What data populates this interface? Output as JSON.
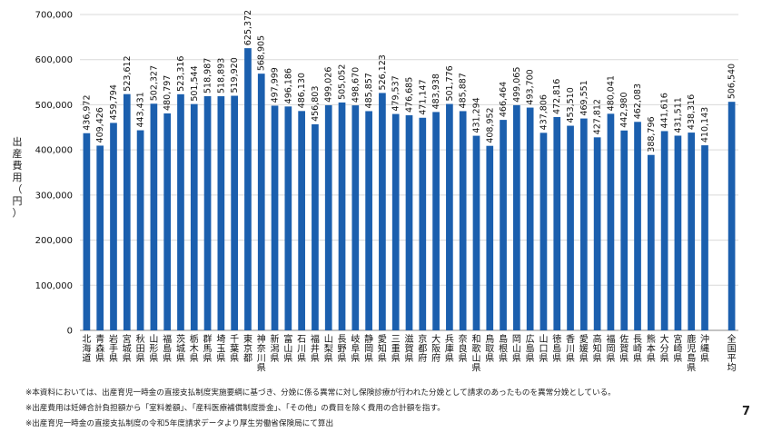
{
  "chart_data": {
    "type": "bar",
    "ylabel": "出産費用（円）",
    "ylim": [
      0,
      700000
    ],
    "yticks": [
      "0",
      "100,000",
      "200,000",
      "300,000",
      "400,000",
      "500,000",
      "600,000",
      "700,000"
    ],
    "grid": true,
    "bar_color": "#1b5fae",
    "categories": [
      "北海道",
      "青森県",
      "岩手県",
      "宮城県",
      "秋田県",
      "山形県",
      "福島県",
      "茨城県",
      "栃木県",
      "群馬県",
      "埼玉県",
      "千葉県",
      "東京都",
      "神奈川県",
      "新潟県",
      "富山県",
      "石川県",
      "福井県",
      "山梨県",
      "長野県",
      "岐阜県",
      "静岡県",
      "愛知県",
      "三重県",
      "滋賀県",
      "京都府",
      "大阪府",
      "兵庫県",
      "奈良県",
      "和歌山県",
      "鳥取県",
      "島根県",
      "岡山県",
      "広島県",
      "山口県",
      "徳島県",
      "香川県",
      "愛媛県",
      "高知県",
      "福岡県",
      "佐賀県",
      "長崎県",
      "熊本県",
      "大分県",
      "宮崎県",
      "鹿児島県",
      "沖縄県",
      "全国平均"
    ],
    "values": [
      436972,
      409426,
      459794,
      523612,
      443431,
      502327,
      480797,
      523316,
      501544,
      518987,
      518893,
      519920,
      625372,
      568905,
      497999,
      496186,
      486130,
      456803,
      499026,
      505052,
      498670,
      485857,
      526123,
      479537,
      476685,
      471147,
      483938,
      501776,
      485887,
      431294,
      408952,
      466464,
      499065,
      493700,
      437806,
      472816,
      453510,
      469551,
      427812,
      480041,
      442980,
      462083,
      388796,
      441616,
      431511,
      438316,
      410143,
      506540
    ],
    "value_labels": [
      "436,972",
      "409,426",
      "459,794",
      "523,612",
      "443,431",
      "502,327",
      "480,797",
      "523,316",
      "501,544",
      "518,987",
      "518,893",
      "519,920",
      "625,372",
      "568,905",
      "497,999",
      "496,186",
      "486,130",
      "456,803",
      "499,026",
      "505,052",
      "498,670",
      "485,857",
      "526,123",
      "479,537",
      "476,685",
      "471,147",
      "483,938",
      "501,776",
      "485,887",
      "431,294",
      "408,952",
      "466,464",
      "499,065",
      "493,700",
      "437,806",
      "472,816",
      "453,510",
      "469,551",
      "427,812",
      "480,041",
      "442,980",
      "462,083",
      "388,796",
      "441,616",
      "431,511",
      "438,316",
      "410,143",
      "506,540"
    ]
  },
  "notes": [
    "※本資料においては、出産育児一時金の直接支払制度実施要綱に基づき、分娩に係る異常に対し保険診療が行われた分娩として請求のあったものを異常分娩としている。",
    "※出産費用は妊婦合計負担額から「室料差額」、「産科医療補償制度掛金」、「その他」の費目を除く費用の合計額を指す。",
    "※出産育児一時金の直接支払制度の令和5年度請求データより厚生労働省保険局にて算出"
  ],
  "page_number": "7"
}
